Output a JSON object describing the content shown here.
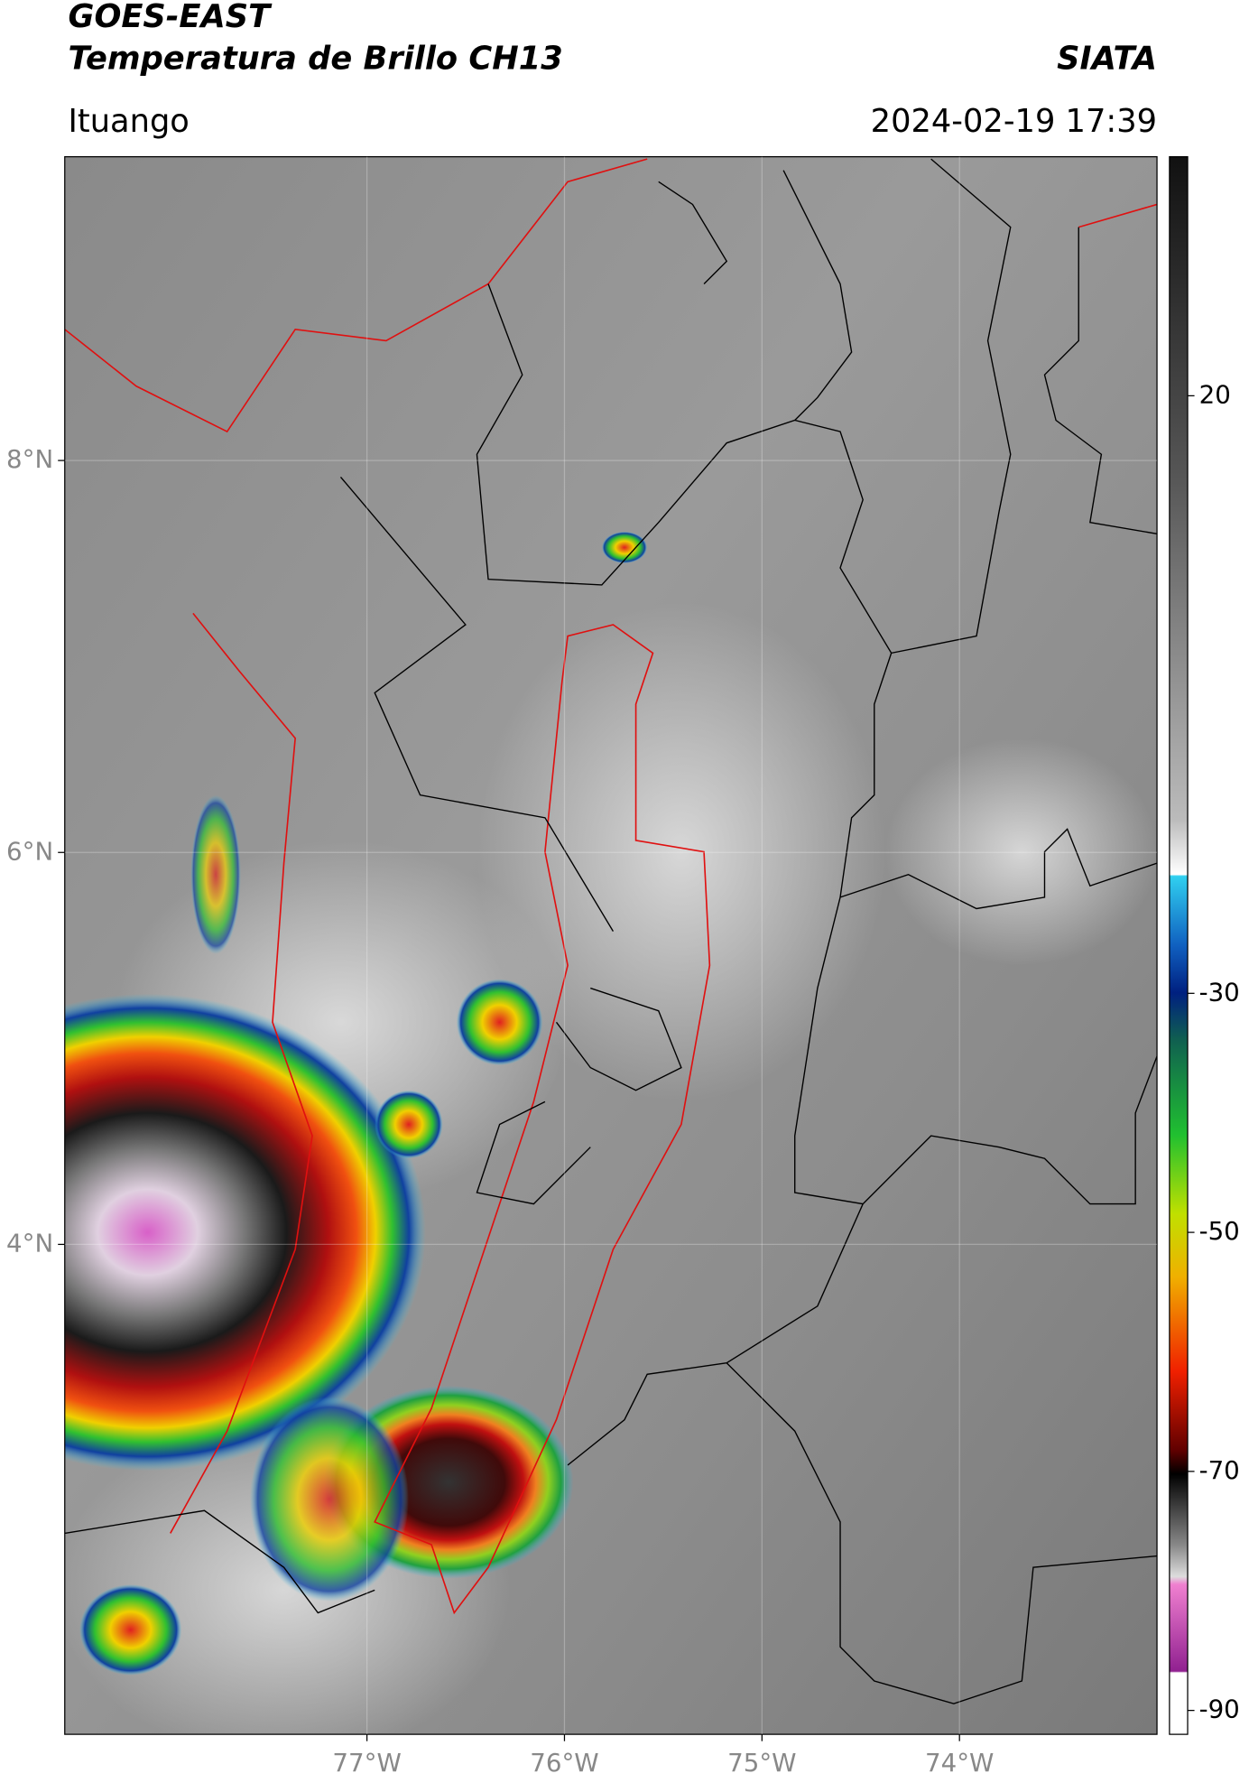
{
  "header": {
    "title": "GOES-EAST",
    "subtitle": "Temperatura de Brillo CH13",
    "organization": "SIATA",
    "location": "Ituango",
    "datetime": "2024-02-19 17:39"
  },
  "map": {
    "xlim": [
      -78.53,
      -73.0
    ],
    "ylim": [
      1.5,
      9.55
    ],
    "xticks": [
      {
        "value": -77,
        "label": "77°W"
      },
      {
        "value": -76,
        "label": "76°W"
      },
      {
        "value": -75,
        "label": "75°W"
      },
      {
        "value": -74,
        "label": "74°W"
      }
    ],
    "yticks": [
      {
        "value": 8,
        "label": "8°N"
      },
      {
        "value": 6,
        "label": "6°N"
      },
      {
        "value": 4,
        "label": "4°N"
      }
    ]
  },
  "colorbar": {
    "lim": [
      -92,
      40
    ],
    "ticks": [
      20,
      -30,
      -50,
      -70,
      -90
    ]
  }
}
